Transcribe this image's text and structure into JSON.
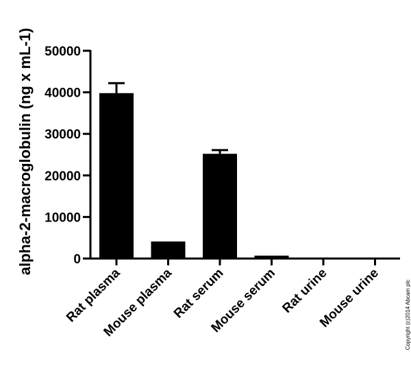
{
  "chart_data": {
    "type": "bar",
    "title": "",
    "xlabel": "",
    "ylabel": "alpha-2-macroglobulin (ng x mL-1)",
    "categories": [
      "Rat plasma",
      "Mouse plasma",
      "Rat serum",
      "Mouse serum",
      "Rat urine",
      "Mouse urine"
    ],
    "values": [
      39800,
      4100,
      25200,
      700,
      0,
      0
    ],
    "error_upper": [
      2400,
      0,
      900,
      0,
      0,
      0
    ],
    "ylim": [
      0,
      50000
    ],
    "yticks": [
      0,
      10000,
      20000,
      30000,
      40000,
      50000
    ],
    "ytick_labels": [
      "0",
      "10000",
      "20000",
      "30000",
      "40000",
      "50000"
    ],
    "bar_color": "#000000",
    "grid": false,
    "legend": "none"
  },
  "copyright": "Copyright (c)2014 Abcam plc"
}
